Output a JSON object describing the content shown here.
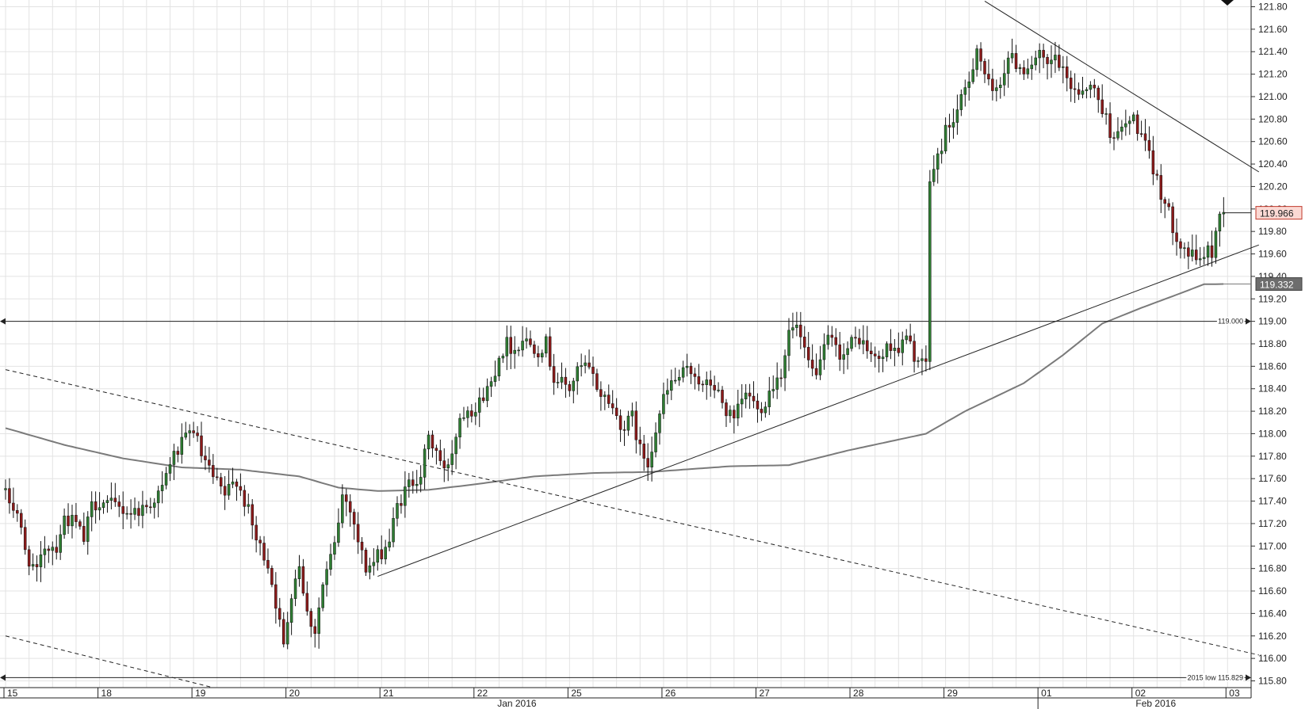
{
  "chart_data": {
    "type": "candlestick",
    "title": "",
    "xlabel": "",
    "ylabel": "",
    "ylim": [
      115.74,
      121.86
    ],
    "y_ticks": [
      "121.80",
      "121.60",
      "121.40",
      "121.20",
      "121.00",
      "120.80",
      "120.60",
      "120.40",
      "120.20",
      "120.00",
      "119.80",
      "119.60",
      "119.40",
      "119.20",
      "119.00",
      "118.80",
      "118.60",
      "118.40",
      "118.20",
      "118.00",
      "117.80",
      "117.60",
      "117.40",
      "117.20",
      "117.00",
      "116.80",
      "116.60",
      "116.40",
      "116.20",
      "116.00",
      "115.80"
    ],
    "x_day_labels": [
      {
        "label": "15",
        "slot": 0
      },
      {
        "label": "18",
        "slot": 24
      },
      {
        "label": "19",
        "slot": 48
      },
      {
        "label": "20",
        "slot": 72
      },
      {
        "label": "21",
        "slot": 96
      },
      {
        "label": "22",
        "slot": 120
      },
      {
        "label": "25",
        "slot": 144
      },
      {
        "label": "26",
        "slot": 168
      },
      {
        "label": "27",
        "slot": 192
      },
      {
        "label": "28",
        "slot": 216
      },
      {
        "label": "29",
        "slot": 240
      },
      {
        "label": "01",
        "slot": 264
      },
      {
        "label": "02",
        "slot": 288
      },
      {
        "label": "03",
        "slot": 312
      }
    ],
    "x_month_labels": [
      {
        "label": "Jan 2016",
        "slot": 130
      },
      {
        "label": "Feb 2016",
        "slot": 293
      }
    ],
    "slot_count": 321,
    "close_anchors": [
      [
        0,
        117.45
      ],
      [
        3,
        117.3
      ],
      [
        5,
        116.95
      ],
      [
        8,
        116.75
      ],
      [
        10,
        117.0
      ],
      [
        13,
        117.0
      ],
      [
        15,
        117.25
      ],
      [
        18,
        117.2
      ],
      [
        20,
        117.05
      ],
      [
        22,
        117.35
      ],
      [
        24,
        117.4
      ],
      [
        28,
        117.35
      ],
      [
        32,
        117.3
      ],
      [
        36,
        117.35
      ],
      [
        40,
        117.5
      ],
      [
        42,
        117.75
      ],
      [
        45,
        117.9
      ],
      [
        48,
        118.05
      ],
      [
        50,
        117.8
      ],
      [
        53,
        117.6
      ],
      [
        56,
        117.45
      ],
      [
        59,
        117.6
      ],
      [
        62,
        117.3
      ],
      [
        64,
        117.05
      ],
      [
        67,
        116.85
      ],
      [
        69,
        116.5
      ],
      [
        71,
        116.1
      ],
      [
        73,
        116.6
      ],
      [
        75,
        116.85
      ],
      [
        77,
        116.4
      ],
      [
        79,
        116.25
      ],
      [
        81,
        116.65
      ],
      [
        84,
        117.0
      ],
      [
        86,
        117.45
      ],
      [
        88,
        117.35
      ],
      [
        90,
        117.05
      ],
      [
        92,
        116.8
      ],
      [
        94,
        116.85
      ],
      [
        96,
        116.95
      ],
      [
        98,
        117.05
      ],
      [
        100,
        117.35
      ],
      [
        103,
        117.55
      ],
      [
        106,
        117.65
      ],
      [
        108,
        117.95
      ],
      [
        110,
        117.85
      ],
      [
        112,
        117.65
      ],
      [
        114,
        117.85
      ],
      [
        116,
        118.15
      ],
      [
        118,
        118.25
      ],
      [
        120,
        118.2
      ],
      [
        122,
        118.35
      ],
      [
        124,
        118.45
      ],
      [
        126,
        118.7
      ],
      [
        128,
        118.8
      ],
      [
        130,
        118.75
      ],
      [
        132,
        118.85
      ],
      [
        134,
        118.8
      ],
      [
        136,
        118.75
      ],
      [
        138,
        118.8
      ],
      [
        140,
        118.5
      ],
      [
        142,
        118.45
      ],
      [
        144,
        118.4
      ],
      [
        146,
        118.55
      ],
      [
        148,
        118.6
      ],
      [
        150,
        118.5
      ],
      [
        152,
        118.35
      ],
      [
        154,
        118.3
      ],
      [
        156,
        118.15
      ],
      [
        158,
        118.05
      ],
      [
        160,
        118.15
      ],
      [
        162,
        117.85
      ],
      [
        164,
        117.75
      ],
      [
        166,
        118.05
      ],
      [
        168,
        118.3
      ],
      [
        170,
        118.45
      ],
      [
        172,
        118.5
      ],
      [
        174,
        118.55
      ],
      [
        176,
        118.55
      ],
      [
        178,
        118.4
      ],
      [
        180,
        118.45
      ],
      [
        182,
        118.35
      ],
      [
        184,
        118.2
      ],
      [
        186,
        118.1
      ],
      [
        188,
        118.3
      ],
      [
        190,
        118.35
      ],
      [
        192,
        118.2
      ],
      [
        194,
        118.3
      ],
      [
        196,
        118.45
      ],
      [
        198,
        118.55
      ],
      [
        200,
        118.9
      ],
      [
        202,
        118.95
      ],
      [
        204,
        118.7
      ],
      [
        206,
        118.55
      ],
      [
        208,
        118.6
      ],
      [
        210,
        118.85
      ],
      [
        212,
        118.75
      ],
      [
        214,
        118.7
      ],
      [
        216,
        118.8
      ],
      [
        218,
        118.85
      ],
      [
        220,
        118.75
      ],
      [
        222,
        118.65
      ],
      [
        224,
        118.7
      ],
      [
        226,
        118.8
      ],
      [
        228,
        118.75
      ],
      [
        230,
        118.85
      ],
      [
        232,
        118.7
      ],
      [
        234,
        118.6
      ],
      [
        235,
        118.65
      ],
      [
        236,
        120.25
      ],
      [
        238,
        120.45
      ],
      [
        240,
        120.7
      ],
      [
        242,
        120.8
      ],
      [
        244,
        120.95
      ],
      [
        246,
        121.15
      ],
      [
        248,
        121.45
      ],
      [
        250,
        121.2
      ],
      [
        252,
        121.0
      ],
      [
        254,
        121.15
      ],
      [
        256,
        121.35
      ],
      [
        258,
        121.3
      ],
      [
        260,
        121.25
      ],
      [
        262,
        121.3
      ],
      [
        264,
        121.35
      ],
      [
        266,
        121.25
      ],
      [
        268,
        121.35
      ],
      [
        270,
        121.2
      ],
      [
        272,
        121.1
      ],
      [
        274,
        121.05
      ],
      [
        276,
        121.1
      ],
      [
        278,
        121.05
      ],
      [
        280,
        120.9
      ],
      [
        282,
        120.7
      ],
      [
        284,
        120.65
      ],
      [
        286,
        120.75
      ],
      [
        288,
        120.8
      ],
      [
        290,
        120.65
      ],
      [
        292,
        120.45
      ],
      [
        294,
        120.25
      ],
      [
        296,
        120.05
      ],
      [
        298,
        119.85
      ],
      [
        300,
        119.7
      ],
      [
        302,
        119.6
      ],
      [
        304,
        119.55
      ],
      [
        306,
        119.6
      ],
      [
        308,
        119.62
      ],
      [
        310,
        119.95
      ],
      [
        311,
        119.97
      ]
    ],
    "sma_anchors": [
      [
        0,
        118.05
      ],
      [
        15,
        117.9
      ],
      [
        30,
        117.78
      ],
      [
        45,
        117.7
      ],
      [
        60,
        117.68
      ],
      [
        75,
        117.62
      ],
      [
        85,
        117.52
      ],
      [
        95,
        117.49
      ],
      [
        108,
        117.5
      ],
      [
        120,
        117.55
      ],
      [
        135,
        117.62
      ],
      [
        150,
        117.65
      ],
      [
        165,
        117.66
      ],
      [
        185,
        117.71
      ],
      [
        200,
        117.72
      ],
      [
        215,
        117.85
      ],
      [
        235,
        118.0
      ],
      [
        245,
        118.2
      ],
      [
        260,
        118.45
      ],
      [
        270,
        118.7
      ],
      [
        280,
        118.98
      ],
      [
        290,
        119.12
      ],
      [
        300,
        119.25
      ],
      [
        306,
        119.33
      ],
      [
        311,
        119.332
      ]
    ],
    "horizontal_lines": [
      {
        "price": 119.0,
        "label": "119.000"
      },
      {
        "price": 115.829,
        "label": "2015 low    115.829"
      }
    ],
    "trend_lines": [
      {
        "style": "solid",
        "from": [
          95,
          116.73
        ],
        "to": [
          320,
          119.68
        ]
      },
      {
        "style": "solid",
        "from": [
          250,
          121.85
        ],
        "to": [
          320,
          120.33
        ]
      },
      {
        "style": "dashed",
        "from": [
          0,
          118.57
        ],
        "to": [
          320,
          116.03
        ]
      },
      {
        "style": "dashed",
        "from": [
          0,
          116.2
        ],
        "to": [
          53,
          115.74
        ]
      }
    ],
    "price_tags": [
      {
        "value": "119.966",
        "price": 119.966,
        "variant": "current"
      },
      {
        "value": "119.332",
        "price": 119.332,
        "variant": "sma"
      }
    ],
    "colors": {
      "bull": "#2e7d32",
      "bear": "#8b1a1a",
      "grid": "#e3e3e3",
      "sma": "#7a7a7a",
      "line": "#222222",
      "current_tag_bg": "#fbd9d4",
      "current_tag_border": "#c0392b",
      "sma_tag_bg": "#6d6d6d"
    }
  }
}
